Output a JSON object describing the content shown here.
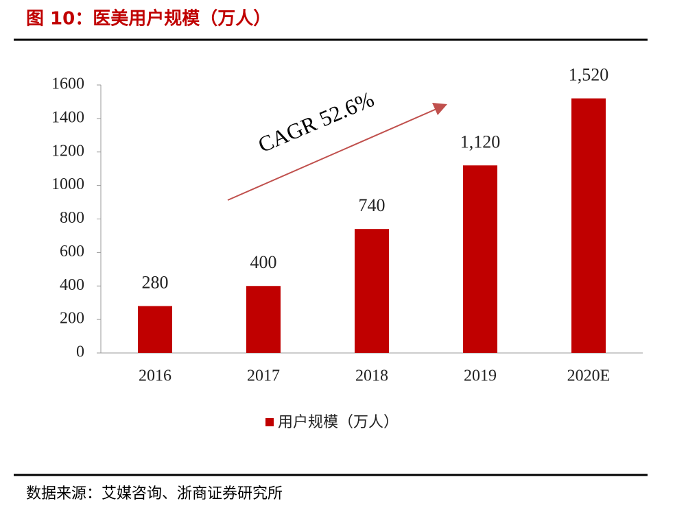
{
  "chart_data": {
    "type": "bar",
    "title": "图 10：医美用户规模（万人）",
    "categories": [
      "2016",
      "2017",
      "2018",
      "2019",
      "2020E"
    ],
    "series": [
      {
        "name": "用户规模（万人）",
        "color": "#c00000",
        "values": [
          280,
          400,
          740,
          1120,
          1520
        ],
        "value_labels": [
          "280",
          "400",
          "740",
          "1,120",
          "1,520"
        ]
      }
    ],
    "ylim": [
      0,
      1600
    ],
    "yticks": [
      0,
      200,
      400,
      600,
      800,
      1000,
      1200,
      1400,
      1600
    ],
    "annotation": "CAGR 52.6%",
    "legend": "bottom",
    "source": "数据来源：艾媒咨询、浙商证券研究所"
  }
}
